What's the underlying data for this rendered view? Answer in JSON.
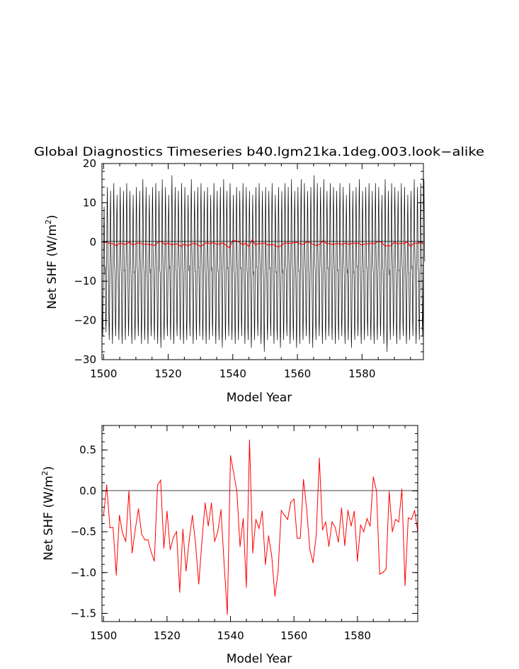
{
  "figure": {
    "title": "Global Diagnostics Timeseries b40.lgm21ka.1deg.003.look−alike"
  },
  "chart_data": [
    {
      "type": "line",
      "xlabel": "Model Year",
      "ylabel_main": "Net SHF (W/m",
      "ylabel_sup": "2",
      "ylabel_close": ")",
      "xlim": [
        1499.5,
        1599
      ],
      "ylim": [
        -30,
        20
      ],
      "xticks": [
        1500,
        1520,
        1540,
        1560,
        1580
      ],
      "xtick_labels": [
        "1500",
        "1520",
        "1540",
        "1560",
        "1580"
      ],
      "yticks": [
        -30,
        -20,
        -10,
        0,
        10,
        20
      ],
      "ytick_labels": [
        "−30",
        "−20",
        "−10",
        "0",
        "10",
        "20"
      ],
      "reference_line": 0,
      "grid": false,
      "series": [
        {
          "role": "monthly",
          "color": "#000000",
          "description": "monthly values oscillate seasonally between about -27 and +17 each year",
          "annual_max": [
            9,
            14,
            13,
            15,
            12,
            14,
            13,
            15,
            13,
            12,
            14,
            13,
            16,
            14,
            12,
            14,
            15,
            13,
            16,
            14,
            12,
            17,
            14,
            13,
            15,
            14,
            12,
            16,
            13,
            14,
            15,
            13,
            14,
            12,
            15,
            13,
            14,
            16,
            13,
            15,
            12,
            14,
            13,
            15,
            14,
            13,
            12,
            14,
            15,
            13,
            14,
            13,
            15,
            12,
            14,
            13,
            15,
            14,
            16,
            13,
            14,
            16,
            15,
            13,
            14,
            17,
            15,
            14,
            16,
            13,
            15,
            14,
            13,
            15,
            14,
            12,
            15,
            13,
            14,
            16,
            13,
            14,
            15,
            13,
            15,
            14,
            12,
            16,
            13,
            15,
            14,
            13,
            15,
            14,
            12,
            13,
            16,
            14,
            15,
            16
          ],
          "annual_min": [
            -24,
            -23,
            -25,
            -26,
            -24,
            -25,
            -26,
            -25,
            -24,
            -26,
            -25,
            -24,
            -26,
            -25,
            -26,
            -24,
            -25,
            -26,
            -27,
            -25,
            -24,
            -25,
            -26,
            -24,
            -25,
            -26,
            -25,
            -24,
            -26,
            -25,
            -24,
            -25,
            -26,
            -25,
            -24,
            -26,
            -25,
            -27,
            -25,
            -24,
            -25,
            -26,
            -25,
            -24,
            -26,
            -25,
            -27,
            -25,
            -24,
            -26,
            -28,
            -25,
            -24,
            -26,
            -25,
            -27,
            -25,
            -24,
            -26,
            -25,
            -27,
            -26,
            -25,
            -24,
            -26,
            -27,
            -25,
            -24,
            -26,
            -25,
            -24,
            -25,
            -26,
            -25,
            -24,
            -26,
            -25,
            -27,
            -25,
            -24,
            -26,
            -25,
            -24,
            -25,
            -26,
            -25,
            -24,
            -26,
            -28,
            -25,
            -24,
            -26,
            -25,
            -24,
            -26,
            -25,
            -24,
            -26,
            -25,
            -24
          ]
        },
        {
          "role": "annual-mean",
          "color": "#ff0000",
          "source": "annual means (same values as lower panel)"
        }
      ]
    },
    {
      "type": "line",
      "xlabel": "Model Year",
      "ylabel_main": "Net SHF (W/m",
      "ylabel_sup": "2",
      "ylabel_close": ")",
      "xlim": [
        1499.5,
        1599
      ],
      "ylim": [
        -1.6,
        0.8
      ],
      "xticks": [
        1500,
        1520,
        1540,
        1560,
        1580
      ],
      "xtick_labels": [
        "1500",
        "1520",
        "1540",
        "1560",
        "1580"
      ],
      "yticks": [
        -1.5,
        -1.0,
        -0.5,
        0.0,
        0.5
      ],
      "ytick_labels": [
        "−1.5",
        "−1.0",
        "−0.5",
        "0.0",
        "0.5"
      ],
      "reference_line": 0,
      "grid": false,
      "series": [
        {
          "role": "annual-mean",
          "color": "#ff0000",
          "x": [
            1500,
            1501,
            1502,
            1503,
            1504,
            1505,
            1506,
            1507,
            1508,
            1509,
            1510,
            1511,
            1512,
            1513,
            1514,
            1515,
            1516,
            1517,
            1518,
            1519,
            1520,
            1521,
            1522,
            1523,
            1524,
            1525,
            1526,
            1527,
            1528,
            1529,
            1530,
            1531,
            1532,
            1533,
            1534,
            1535,
            1536,
            1537,
            1538,
            1539,
            1540,
            1541,
            1542,
            1543,
            1544,
            1545,
            1546,
            1547,
            1548,
            1549,
            1550,
            1551,
            1552,
            1553,
            1554,
            1555,
            1556,
            1557,
            1558,
            1559,
            1560,
            1561,
            1562,
            1563,
            1564,
            1565,
            1566,
            1567,
            1568,
            1569,
            1570,
            1571,
            1572,
            1573,
            1574,
            1575,
            1576,
            1577,
            1578,
            1579,
            1580,
            1581,
            1582,
            1583,
            1584,
            1585,
            1586,
            1587,
            1588,
            1589,
            1590,
            1591,
            1592,
            1593,
            1594,
            1595,
            1596,
            1597,
            1598,
            1599
          ],
          "y": [
            -0.3,
            0.07,
            -0.45,
            -0.45,
            -1.03,
            -0.3,
            -0.52,
            -0.62,
            0.0,
            -0.76,
            -0.47,
            -0.22,
            -0.53,
            -0.6,
            -0.6,
            -0.75,
            -0.86,
            0.07,
            0.13,
            -0.7,
            -0.25,
            -0.72,
            -0.57,
            -0.5,
            -1.24,
            -0.47,
            -0.98,
            -0.6,
            -0.3,
            -0.65,
            -1.14,
            -0.62,
            -0.15,
            -0.43,
            -0.15,
            -0.62,
            -0.5,
            -0.23,
            -0.9,
            -1.51,
            0.43,
            0.22,
            0.0,
            -0.68,
            -0.34,
            -1.18,
            0.62,
            -0.76,
            -0.35,
            -0.46,
            -0.25,
            -0.9,
            -0.55,
            -0.8,
            -1.29,
            -0.98,
            -0.24,
            -0.3,
            -0.35,
            -0.14,
            -0.1,
            -0.58,
            -0.58,
            0.14,
            -0.22,
            -0.72,
            -0.88,
            -0.55,
            0.4,
            -0.48,
            -0.38,
            -0.68,
            -0.38,
            -0.45,
            -0.63,
            -0.21,
            -0.67,
            -0.24,
            -0.43,
            -0.25,
            -0.86,
            -0.42,
            -0.5,
            -0.34,
            -0.43,
            0.17,
            0.0,
            -1.02,
            -1.0,
            -0.96,
            -0.01,
            -0.5,
            -0.35,
            -0.38,
            0.02,
            -1.16,
            -0.33,
            -0.35,
            -0.24,
            -0.5
          ]
        }
      ]
    }
  ]
}
